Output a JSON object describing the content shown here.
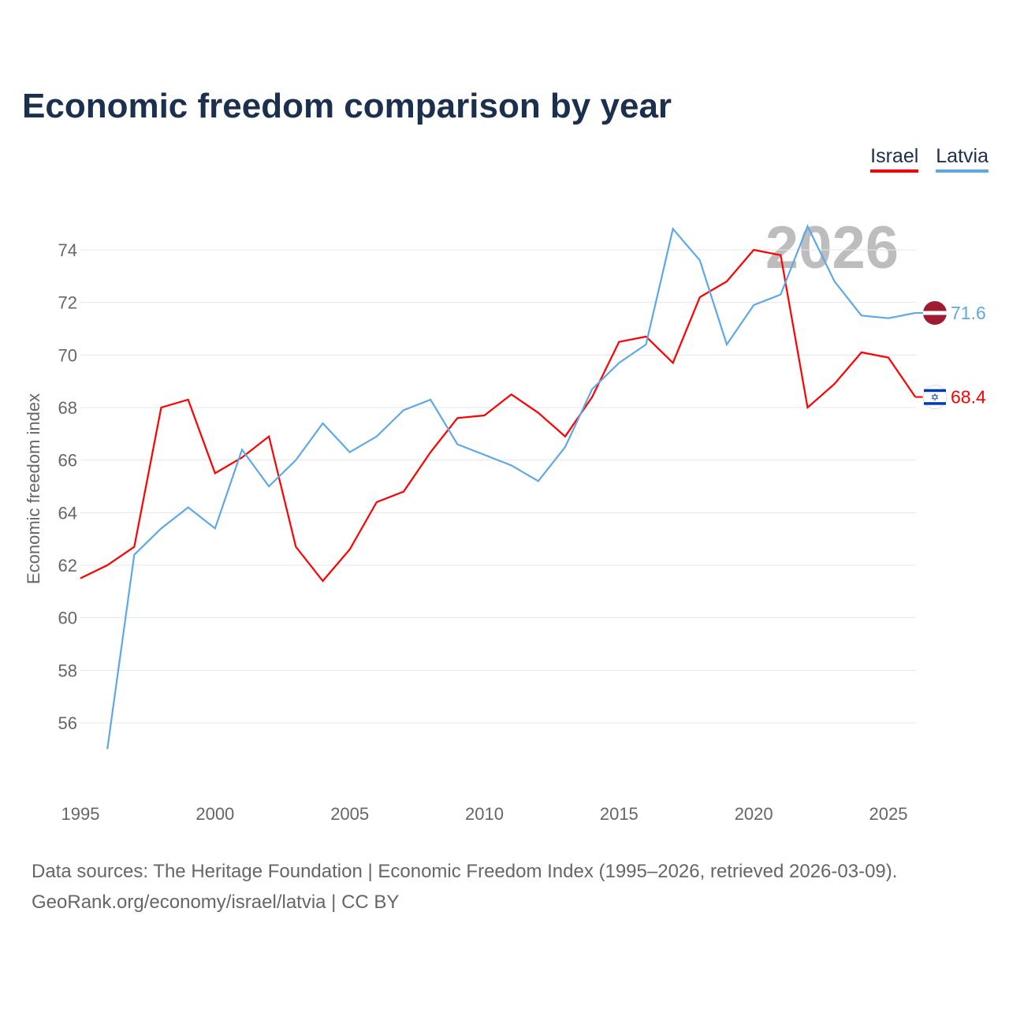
{
  "chart_data": {
    "type": "line",
    "title": "Economic freedom comparison by year",
    "xlabel": "",
    "ylabel": "Economic freedom index",
    "xlim": [
      1995,
      2026
    ],
    "ylim": [
      54,
      75
    ],
    "x_ticks": [
      1995,
      2000,
      2005,
      2010,
      2015,
      2020,
      2025
    ],
    "y_ticks": [
      56,
      58,
      60,
      62,
      64,
      66,
      68,
      70,
      72,
      74
    ],
    "grid": true,
    "legend_position": "top-right",
    "watermark_year": "2026",
    "series": [
      {
        "name": "Israel",
        "color": "#ff0000",
        "end_label": "68.4",
        "x": [
          1995,
          1996,
          1997,
          1998,
          1999,
          2000,
          2001,
          2002,
          2003,
          2004,
          2005,
          2006,
          2007,
          2008,
          2009,
          2010,
          2011,
          2012,
          2013,
          2014,
          2015,
          2016,
          2017,
          2018,
          2019,
          2020,
          2021,
          2022,
          2023,
          2024,
          2025,
          2026
        ],
        "values": [
          61.5,
          62.0,
          62.7,
          68.0,
          68.3,
          65.5,
          66.1,
          66.9,
          62.7,
          61.4,
          62.6,
          64.4,
          64.8,
          66.3,
          67.6,
          67.7,
          68.5,
          67.8,
          66.9,
          68.4,
          70.5,
          70.7,
          69.7,
          72.2,
          72.8,
          74.0,
          73.8,
          68.0,
          68.9,
          70.1,
          69.9,
          68.4
        ]
      },
      {
        "name": "Latvia",
        "color": "#5ea8e8",
        "end_label": "71.6",
        "x": [
          1996,
          1997,
          1998,
          1999,
          2000,
          2001,
          2002,
          2003,
          2004,
          2005,
          2006,
          2007,
          2008,
          2009,
          2010,
          2011,
          2012,
          2013,
          2014,
          2015,
          2016,
          2017,
          2018,
          2019,
          2020,
          2021,
          2022,
          2023,
          2024,
          2025,
          2026
        ],
        "values": [
          55.0,
          62.4,
          63.4,
          64.2,
          63.4,
          66.4,
          65.0,
          66.0,
          67.4,
          66.3,
          66.9,
          67.9,
          68.3,
          66.6,
          66.2,
          65.8,
          65.2,
          66.5,
          68.7,
          69.7,
          70.4,
          74.8,
          73.6,
          70.4,
          71.9,
          72.3,
          74.9,
          72.8,
          71.5,
          71.4,
          71.6
        ]
      }
    ]
  },
  "footer": {
    "line1": "Data sources: The Heritage Foundation | Economic Freedom Index (1995–2026, retrieved 2026-03-09).",
    "line2": "GeoRank.org/economy/israel/latvia | CC BY"
  }
}
